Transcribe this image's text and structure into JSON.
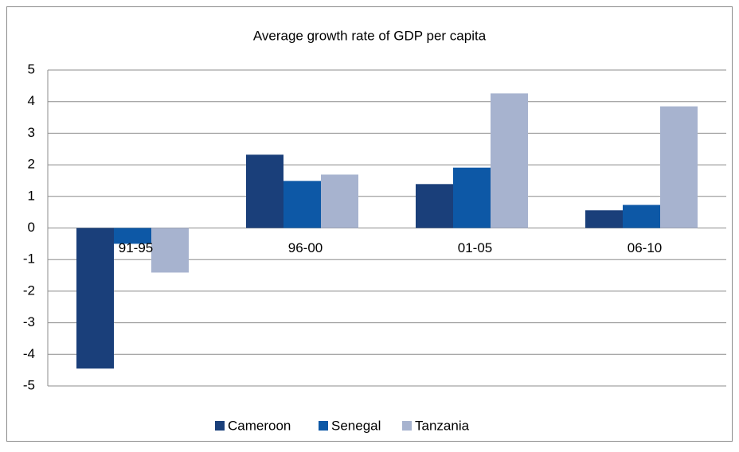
{
  "chart_data": {
    "type": "bar",
    "title": "Average growth rate of GDP per capita",
    "categories": [
      "91-95",
      "96-00",
      "01-05",
      "06-10"
    ],
    "series": [
      {
        "name": "Cameroon",
        "color": "#1a3f7a",
        "values": [
          -4.45,
          2.32,
          1.39,
          0.56
        ]
      },
      {
        "name": "Senegal",
        "color": "#0d58a6",
        "values": [
          -0.5,
          1.49,
          1.91,
          0.73
        ]
      },
      {
        "name": "Tanzania",
        "color": "#a7b3cf",
        "values": [
          -1.41,
          1.69,
          4.26,
          3.85
        ]
      }
    ],
    "ylim": [
      -5,
      5
    ],
    "yticks": [
      -5,
      -4,
      -3,
      -2,
      -1,
      0,
      1,
      2,
      3,
      4,
      5
    ],
    "grid": true,
    "legend": "bottom"
  }
}
